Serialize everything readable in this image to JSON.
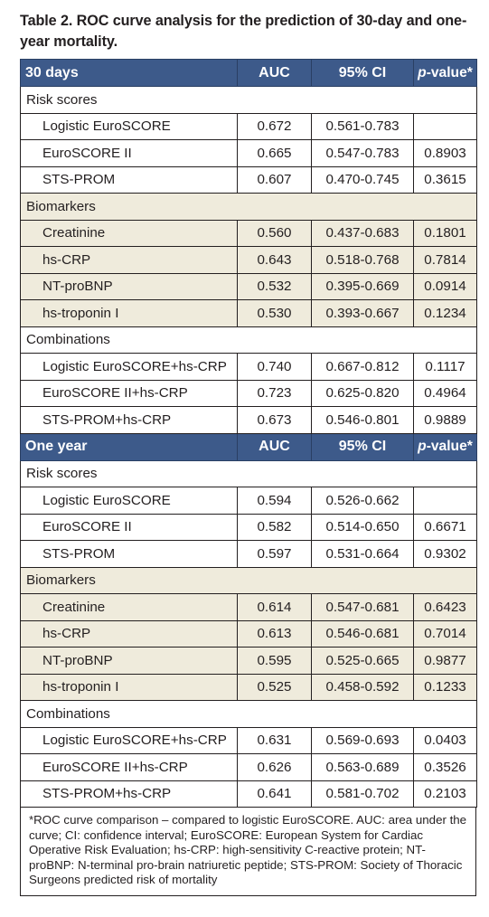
{
  "title": "Table 2. ROC curve analysis for the prediction of 30-day and one-year mortality.",
  "header_30": {
    "period": "30 days",
    "auc": "AUC",
    "ci": "95% CI",
    "p_italic": "p",
    "p_rest": "-value*"
  },
  "header_1y": {
    "period": "One year",
    "auc": "AUC",
    "ci": "95% CI",
    "p_italic": "p",
    "p_rest": "-value*"
  },
  "sections": {
    "d30": {
      "risk": {
        "label": "Risk scores",
        "rows": [
          {
            "name": "Logistic EuroSCORE",
            "auc": "0.672",
            "ci": "0.561-0.783",
            "p": ""
          },
          {
            "name": "EuroSCORE II",
            "auc": "0.665",
            "ci": "0.547-0.783",
            "p": "0.8903"
          },
          {
            "name": "STS-PROM",
            "auc": "0.607",
            "ci": "0.470-0.745",
            "p": "0.3615"
          }
        ]
      },
      "bio": {
        "label": "Biomarkers",
        "rows": [
          {
            "name": "Creatinine",
            "auc": "0.560",
            "ci": "0.437-0.683",
            "p": "0.1801"
          },
          {
            "name": "hs-CRP",
            "auc": "0.643",
            "ci": "0.518-0.768",
            "p": "0.7814"
          },
          {
            "name": "NT-proBNP",
            "auc": "0.532",
            "ci": "0.395-0.669",
            "p": "0.0914"
          },
          {
            "name": "hs-troponin I",
            "auc": "0.530",
            "ci": "0.393-0.667",
            "p": "0.1234"
          }
        ]
      },
      "comb": {
        "label": "Combinations",
        "rows": [
          {
            "name": "Logistic EuroSCORE+hs-CRP",
            "auc": "0.740",
            "ci": "0.667-0.812",
            "p": "0.1117"
          },
          {
            "name": "EuroSCORE II+hs-CRP",
            "auc": "0.723",
            "ci": "0.625-0.820",
            "p": "0.4964"
          },
          {
            "name": "STS-PROM+hs-CRP",
            "auc": "0.673",
            "ci": "0.546-0.801",
            "p": "0.9889"
          }
        ]
      }
    },
    "y1": {
      "risk": {
        "label": "Risk scores",
        "rows": [
          {
            "name": "Logistic EuroSCORE",
            "auc": "0.594",
            "ci": "0.526-0.662",
            "p": ""
          },
          {
            "name": "EuroSCORE II",
            "auc": "0.582",
            "ci": "0.514-0.650",
            "p": "0.6671"
          },
          {
            "name": "STS-PROM",
            "auc": "0.597",
            "ci": "0.531-0.664",
            "p": "0.9302"
          }
        ]
      },
      "bio": {
        "label": "Biomarkers",
        "rows": [
          {
            "name": "Creatinine",
            "auc": "0.614",
            "ci": "0.547-0.681",
            "p": "0.6423"
          },
          {
            "name": "hs-CRP",
            "auc": "0.613",
            "ci": "0.546-0.681",
            "p": "0.7014"
          },
          {
            "name": "NT-proBNP",
            "auc": "0.595",
            "ci": "0.525-0.665",
            "p": "0.9877"
          },
          {
            "name": "hs-troponin I",
            "auc": "0.525",
            "ci": "0.458-0.592",
            "p": "0.1233"
          }
        ]
      },
      "comb": {
        "label": "Combinations",
        "rows": [
          {
            "name": "Logistic EuroSCORE+hs-CRP",
            "auc": "0.631",
            "ci": "0.569-0.693",
            "p": "0.0403"
          },
          {
            "name": "EuroSCORE II+hs-CRP",
            "auc": "0.626",
            "ci": "0.563-0.689",
            "p": "0.3526"
          },
          {
            "name": "STS-PROM+hs-CRP",
            "auc": "0.641",
            "ci": "0.581-0.702",
            "p": "0.2103"
          }
        ]
      }
    }
  },
  "footnote": "*ROC curve comparison – compared to logistic EuroSCORE. AUC: area under the curve; CI: confidence interval; EuroSCORE: European System for Cardiac Operative Risk Evaluation; hs-CRP: high-sensitivity C-reactive protein; NT-proBNP: N-terminal pro-brain natriuretic peptide; STS-PROM: Society of Thoracic Surgeons predicted risk of mortality",
  "colors": {
    "header_bg": "#3d5a8a",
    "alt_row_bg": "#efebdc",
    "text": "#231f20"
  }
}
